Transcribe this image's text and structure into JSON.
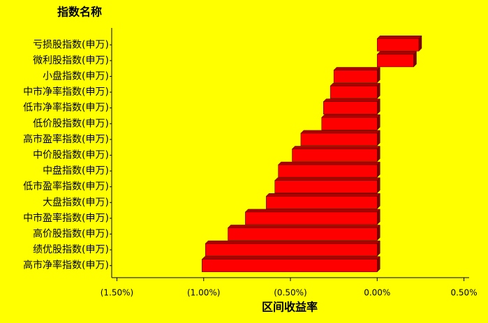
{
  "chart_data": {
    "type": "bar",
    "orientation": "horizontal",
    "y_title": "指数名称",
    "x_title": "区间收益率",
    "categories": [
      "亏损股指数(申万)",
      "微利股指数(申万)",
      "小盘指数(申万)",
      "中市净率指数(申万)",
      "低市净率指数(申万)",
      "低价股指数(申万)",
      "高市盈率指数(申万)",
      "中价股指数(申万)",
      "中盘指数(申万)",
      "低市盈率指数(申万)",
      "大盘指数(申万)",
      "中市盈率指数(申万)",
      "高价股指数(申万)",
      "绩优股指数(申万)",
      "高市净率指数(申万)"
    ],
    "values": [
      0.24,
      0.21,
      -0.25,
      -0.27,
      -0.31,
      -0.32,
      -0.44,
      -0.49,
      -0.57,
      -0.59,
      -0.64,
      -0.76,
      -0.86,
      -0.99,
      -1.01
    ],
    "color": "#ff0000",
    "xlim": [
      -1.53,
      0.53
    ],
    "xticks": [
      {
        "value": -1.5,
        "label": "(1.50%)"
      },
      {
        "value": -1.0,
        "label": "(1.00%)"
      },
      {
        "value": -0.5,
        "label": "(0.50%)"
      },
      {
        "value": 0,
        "label": "0.00%"
      },
      {
        "value": 0.5,
        "label": "0.50%"
      }
    ]
  }
}
